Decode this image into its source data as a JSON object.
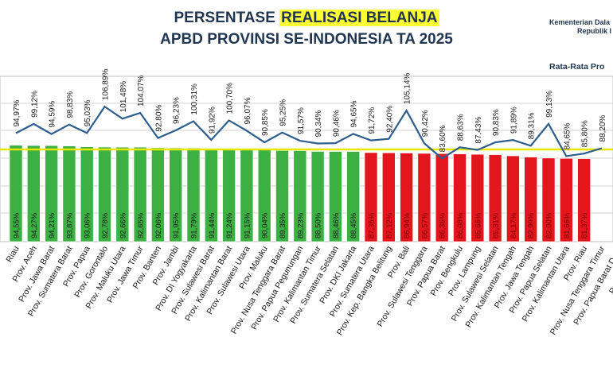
{
  "header": {
    "title_line1_pre": "PERSENTASE ",
    "title_line1_highlight": "REALISASI BELANJA",
    "title_line2": "APBD PROVINSI SE-INDONESIA TA 2025",
    "org_line1": "Kementerian Dala",
    "org_line2": "Republik I",
    "avg_label": "Rata-Rata Pro"
  },
  "colors": {
    "green_bar": "#3cb043",
    "red_bar": "#e3161e",
    "line": "#2e5e8e",
    "average_line": "#e6e600",
    "title": "#1f3550"
  },
  "chart_data": {
    "type": "bar",
    "categories": [
      "Riau",
      "Prov. Aceh",
      "Prov. Jawa Barat",
      "Prov. Sumatera Barat",
      "Prov. Papua",
      "Prov. Gorontalo",
      "Prov. Maluku Utara",
      "Prov. Jawa Timur",
      "Prov. Banten",
      "Prov. Jambi",
      "Prov. DI Yogyakarta",
      "Prov. Sulawesi Barat",
      "Prov. Kalimantan Barat",
      "Prov. Sulawesi Utara",
      "Prov. Maluku",
      "Prov. Nusa Tenggara Barat",
      "Prov. Papua Pegunungan",
      "Prov. Kalimantan Timur",
      "Prov. Sumatera Selatan",
      "Prov. DKI Jakarta",
      "Prov. Sumatera Utara",
      "Prov. Kep. Bangka Belitung",
      "Prov. Bali",
      "Prov. Sulawesi Tenggara",
      "Prov. Papua Barat",
      "Prov. Bengkulu",
      "Prov. Lampung",
      "Prov. Sulawesi Selatan",
      "Prov. Kalimantan Tengah",
      "Prov. Jawa Tengah",
      "Prov. Papua Selatan",
      "Prov. Kalimantan Utara",
      "Prov. Riau",
      "Prov. Nusa Tenggara Timur",
      "Prov. Papua Barat Daya",
      "Prov. Kalimant"
    ],
    "series": [
      {
        "values": [
          94.55,
          94.27,
          94.21,
          93.87,
          93.06,
          92.78,
          92.66,
          92.65,
          92.06,
          91.95,
          91.79,
          91.44,
          91.24,
          91.15,
          90.04,
          89.35,
          89.23,
          88.5,
          88.46,
          88.45,
          87.35,
          87.12,
          86.94,
          86.57,
          86.36,
          86.08,
          85.66,
          85.31,
          84.17,
          82.99,
          82.0,
          81.66,
          81.37,
          null,
          null,
          null
        ],
        "labels": [
          "94,55%",
          "94,27%",
          "94,21%",
          "93,87%",
          "93,06%",
          "92,78%",
          "92,66%",
          "92,65%",
          "92,06%",
          "91,95%",
          "91,79%",
          "91,44%",
          "91,24%",
          "91,15%",
          "90,04%",
          "89,35%",
          "89,23%",
          "88,50%",
          "88,46%",
          "88,45%",
          "87,35%",
          "87,12%",
          "86,94%",
          "86,57%",
          "86,36%",
          "86,08%",
          "85,66%",
          "85,31%",
          "84,17%",
          "82,99%",
          "82,00%",
          "81,66%",
          "81,37%",
          "",
          "",
          ""
        ]
      },
      {
        "values": [
          94.97,
          99.12,
          94.59,
          98.83,
          95.03,
          106.89,
          101.48,
          104.07,
          92.8,
          96.23,
          100.31,
          91.92,
          100.7,
          96.07,
          90.85,
          95.25,
          91.57,
          90.34,
          90.46,
          94.65,
          91.72,
          92.4,
          105.14,
          90.42,
          83.6,
          88.63,
          87.43,
          90.83,
          91.89,
          89.31,
          99.13,
          84.65,
          85.8,
          88.2,
          null,
          null
        ],
        "labels": [
          "94,97%",
          "99,12%",
          "94,59%",
          "98,83%",
          "95,03%",
          "106,89%",
          "101,48%",
          "104,07%",
          "92,80%",
          "96,23%",
          "100,31%",
          "91,92%",
          "100,70%",
          "96,07%",
          "90,85%",
          "95,25%",
          "91,57%",
          "90,34%",
          "90,46%",
          "94,65%",
          "91,72%",
          "92,40%",
          "105,14%",
          "90,42%",
          "83,60%",
          "88,63%",
          "87,43%",
          "90,83%",
          "91,89%",
          "89,31%",
          "99,13%",
          "84,65%",
          "85,80%",
          "88,20%",
          "",
          ""
        ]
      }
    ],
    "green_count": 20,
    "average_line_value": 88,
    "grid": true
  }
}
